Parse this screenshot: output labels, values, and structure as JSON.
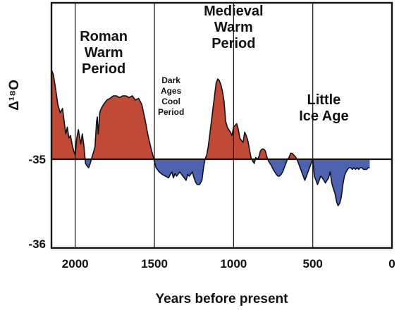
{
  "chart_data": {
    "type": "area",
    "xlabel": "Years before present",
    "ylabel": "Δ¹⁸O",
    "xlim": [
      2150,
      0
    ],
    "ylim": [
      -36.05,
      -33.15
    ],
    "baseline": -35,
    "x_ticks": [
      2000,
      1500,
      1000,
      500,
      0
    ],
    "x_tick_labels": [
      "2000",
      "1500",
      "1000",
      "500",
      "0"
    ],
    "y_ticks": [
      -35,
      -36
    ],
    "y_tick_labels": [
      "-35",
      "-36"
    ],
    "grid": "vertical lines at x ticks",
    "colors": {
      "above_baseline": "#c04a35",
      "below_baseline": "#4d63b0"
    },
    "series": [
      {
        "x": [
          2148,
          2138,
          2125,
          2110,
          2095,
          2080,
          2070,
          2060,
          2050,
          2040,
          2030,
          2020,
          2010,
          2000,
          1990,
          1980,
          1965,
          1955,
          1945,
          1935,
          1925,
          1915,
          1905,
          1895,
          1885,
          1875,
          1865,
          1860,
          1855,
          1850,
          1845,
          1840,
          1830,
          1820,
          1800,
          1780,
          1760,
          1740,
          1720,
          1700,
          1680,
          1660,
          1640,
          1620,
          1600,
          1580,
          1560,
          1540,
          1520,
          1500,
          1490,
          1470,
          1450,
          1430,
          1410,
          1400,
          1390,
          1380,
          1370,
          1360,
          1340,
          1320,
          1300,
          1290,
          1280,
          1260,
          1250,
          1240,
          1230,
          1215,
          1200,
          1190,
          1180,
          1170,
          1160,
          1150,
          1140,
          1130,
          1120,
          1110,
          1100,
          1090,
          1080,
          1070,
          1060,
          1050,
          1040,
          1030,
          1020,
          1010,
          1000,
          990,
          980,
          970,
          960,
          950,
          940,
          930,
          920,
          910,
          900,
          890,
          880,
          870,
          860,
          850,
          840,
          830,
          820,
          810,
          800,
          790,
          780,
          770,
          760,
          750,
          740,
          730,
          720,
          710,
          700,
          690,
          680,
          670,
          660,
          650,
          640,
          630,
          620,
          610,
          600,
          590,
          580,
          570,
          560,
          550,
          540,
          530,
          520,
          510,
          500,
          490,
          480,
          470,
          460,
          450,
          440,
          430,
          420,
          410,
          400,
          390,
          380,
          370,
          360,
          350,
          340,
          330,
          320,
          310,
          300,
          290,
          280,
          270,
          260,
          250,
          240,
          230,
          220,
          210,
          200,
          190,
          180,
          170,
          160,
          150,
          140
        ],
        "y": [
          -33.95,
          -34.0,
          -34.15,
          -34.35,
          -34.45,
          -34.4,
          -34.55,
          -34.7,
          -34.62,
          -34.75,
          -34.72,
          -34.82,
          -34.9,
          -34.95,
          -34.75,
          -34.65,
          -34.82,
          -34.7,
          -34.85,
          -35.05,
          -35.08,
          -35.1,
          -35.05,
          -34.98,
          -34.92,
          -34.85,
          -34.55,
          -34.5,
          -34.7,
          -34.6,
          -34.45,
          -34.42,
          -34.38,
          -34.35,
          -34.3,
          -34.28,
          -34.25,
          -34.25,
          -34.27,
          -34.25,
          -34.25,
          -34.27,
          -34.25,
          -34.3,
          -34.28,
          -34.35,
          -34.52,
          -34.72,
          -34.88,
          -35.02,
          -35.1,
          -35.15,
          -35.18,
          -35.2,
          -35.22,
          -35.18,
          -35.15,
          -35.22,
          -35.17,
          -35.2,
          -35.15,
          -35.2,
          -35.25,
          -35.18,
          -35.2,
          -35.15,
          -35.22,
          -35.27,
          -35.3,
          -35.3,
          -35.25,
          -35.1,
          -35.0,
          -34.95,
          -34.85,
          -34.7,
          -34.55,
          -34.4,
          -34.25,
          -34.1,
          -34.05,
          -34.07,
          -34.12,
          -34.2,
          -34.32,
          -34.55,
          -34.62,
          -34.65,
          -34.68,
          -34.72,
          -34.62,
          -34.6,
          -34.58,
          -34.65,
          -34.75,
          -34.78,
          -34.8,
          -34.68,
          -34.72,
          -34.78,
          -34.88,
          -34.98,
          -35.02,
          -35.05,
          -34.98,
          -35.0,
          -34.97,
          -34.9,
          -34.88,
          -34.88,
          -34.9,
          -34.97,
          -35.02,
          -35.05,
          -35.08,
          -35.12,
          -35.15,
          -35.18,
          -35.2,
          -35.2,
          -35.18,
          -35.15,
          -35.1,
          -35.05,
          -35.0,
          -34.98,
          -34.93,
          -34.93,
          -34.95,
          -34.97,
          -35.0,
          -35.05,
          -35.1,
          -35.15,
          -35.2,
          -35.25,
          -35.2,
          -35.15,
          -35.1,
          -35.05,
          -35.0,
          -35.2,
          -35.25,
          -35.3,
          -35.25,
          -35.2,
          -35.22,
          -35.25,
          -35.28,
          -35.25,
          -35.22,
          -35.15,
          -35.28,
          -35.35,
          -35.4,
          -35.5,
          -35.55,
          -35.52,
          -35.45,
          -35.3,
          -35.2,
          -35.15,
          -35.12,
          -35.1,
          -35.1,
          -35.12,
          -35.1,
          -35.12,
          -35.1,
          -35.12,
          -35.1,
          -35.1,
          -35.12,
          -35.12,
          -35.12,
          -35.1,
          -35.1
        ]
      }
    ],
    "annotations": [
      {
        "lines": [
          "Roman",
          "Warm",
          "Period"
        ],
        "x": 1820,
        "y": -33.6,
        "size": "large"
      },
      {
        "lines": [
          "Dark",
          "Ages",
          "Cool",
          "Period"
        ],
        "x": 1395,
        "y": -34.1,
        "size": "small"
      },
      {
        "lines": [
          "Medieval",
          "Warm",
          "Period"
        ],
        "x": 1000,
        "y": -33.3,
        "size": "large"
      },
      {
        "lines": [
          "Little",
          "Ice Age"
        ],
        "x": 430,
        "y": -34.35,
        "size": "large"
      }
    ]
  }
}
